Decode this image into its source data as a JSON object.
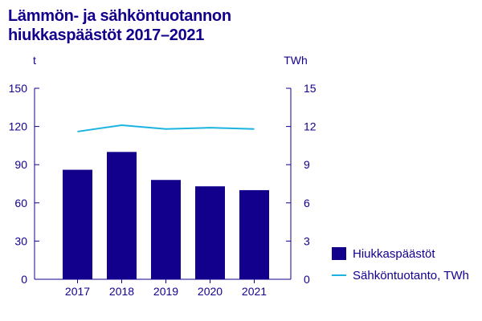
{
  "title_line1": "Lämmön- ja sähköntuotannon",
  "title_line2": "hiukkaspäästöt 2017–2021",
  "colors": {
    "text": "#12008c",
    "bars": "#12008c",
    "line": "#1ab4e0",
    "axis": "#12008c"
  },
  "chart_data": {
    "type": "bar",
    "categories": [
      "2017",
      "2018",
      "2019",
      "2020",
      "2021"
    ],
    "y_left": {
      "unit": "t",
      "range": [
        0,
        150
      ],
      "ticks": [
        0,
        30,
        60,
        90,
        120,
        150
      ]
    },
    "y_right": {
      "unit": "TWh",
      "range": [
        0,
        15
      ],
      "ticks": [
        0,
        3,
        6,
        9,
        12,
        15
      ]
    },
    "series": [
      {
        "name": "Hiukkaspäästöt",
        "type": "bar",
        "axis": "left",
        "values": [
          86,
          100,
          78,
          73,
          70
        ]
      },
      {
        "name": "Sähköntuotanto, TWh",
        "type": "line",
        "axis": "right",
        "values": [
          11.6,
          12.1,
          11.8,
          11.9,
          11.8
        ]
      }
    ],
    "legend_position": "right",
    "grid": false
  }
}
